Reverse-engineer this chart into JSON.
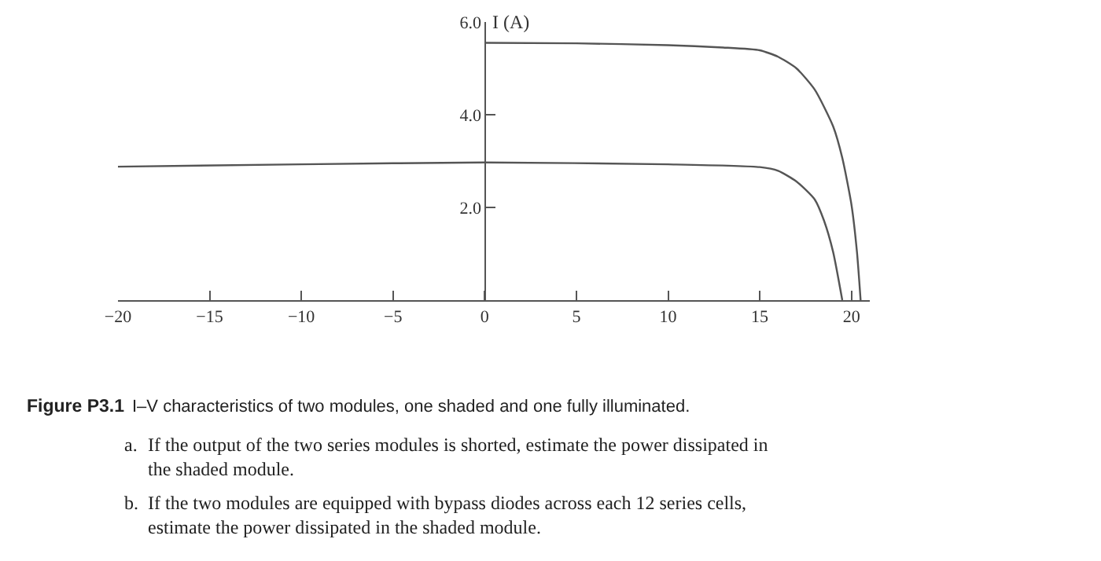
{
  "chart_data": {
    "type": "line",
    "ylabel": "I (A)",
    "xlim": [
      -20,
      21
    ],
    "ylim": [
      0,
      6
    ],
    "xticks": [
      -20,
      -15,
      -10,
      -5,
      0,
      5,
      10,
      15,
      20
    ],
    "yticks": [
      {
        "value": 2,
        "label": "2.0"
      },
      {
        "value": 4,
        "label": "4.0"
      },
      {
        "value": 6,
        "label": "6.0"
      }
    ],
    "grid": false,
    "marker": "none",
    "line_style": "solid",
    "series": [
      {
        "color": "#555555",
        "x": [
          0,
          5,
          10,
          13,
          15,
          16,
          17,
          18,
          19,
          19.5,
          20,
          20.3,
          20.5
        ],
        "values": [
          5.55,
          5.54,
          5.5,
          5.45,
          5.39,
          5.25,
          5.0,
          4.54,
          3.75,
          3.07,
          2.06,
          1.04,
          0
        ]
      },
      {
        "color": "#555555",
        "x": [
          -20,
          -10,
          0,
          10,
          15,
          16,
          17,
          18,
          18.5,
          19,
          19.5
        ],
        "values": [
          2.88,
          2.93,
          2.97,
          2.93,
          2.87,
          2.79,
          2.56,
          2.17,
          1.72,
          1.04,
          0
        ]
      }
    ],
    "annotations": [
      "Figure P3.1",
      "I–V characteristics of two modules, one shaded and one fully illuminated.",
      "a.",
      "If the output of the two series modules is shorted, estimate the power dissipated in the shaded module.",
      "b.",
      "If the two modules are equipped with bypass diodes across each 12 series cells, estimate the power dissipated in the shaded module."
    ]
  }
}
